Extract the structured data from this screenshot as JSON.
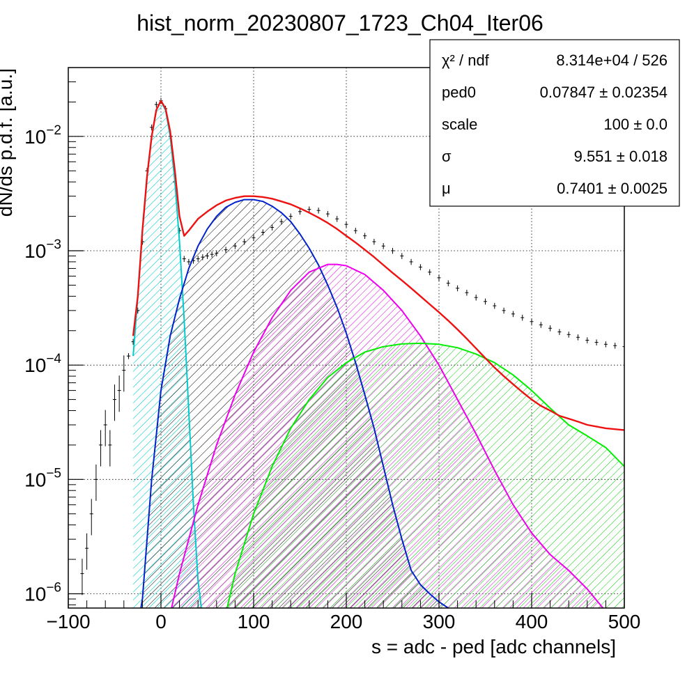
{
  "chart_data": {
    "type": "line",
    "title": "hist_norm_20230807_1723_Ch04_Iter06",
    "xlabel": "s = adc - ped [adc channels]",
    "ylabel": "dN/ds p.d.f. [a.u.]",
    "xlim": [
      -100,
      500
    ],
    "ylim": [
      7.5e-07,
      0.04
    ],
    "yscale": "log",
    "grid": true,
    "x_ticks": [
      {
        "value": -100,
        "label": "−100"
      },
      {
        "value": 0,
        "label": "0"
      },
      {
        "value": 100,
        "label": "100"
      },
      {
        "value": 200,
        "label": "200"
      },
      {
        "value": 300,
        "label": "300"
      },
      {
        "value": 400,
        "label": "400"
      },
      {
        "value": 500,
        "label": "500"
      }
    ],
    "y_ticks": [
      {
        "value": 1e-06,
        "mant": "10",
        "exp": "−6"
      },
      {
        "value": 1e-05,
        "mant": "10",
        "exp": "−5"
      },
      {
        "value": 0.0001,
        "mant": "10",
        "exp": "−4"
      },
      {
        "value": 0.001,
        "mant": "10",
        "exp": "−3"
      },
      {
        "value": 0.01,
        "mant": "10",
        "exp": "−2"
      }
    ],
    "stats_box": {
      "placement": "top-right",
      "rows": [
        {
          "label": "χ² / ndf",
          "value": "8.314e+04 / 526"
        },
        {
          "label": "ped0",
          "value": "0.07847 ± 0.02354"
        },
        {
          "label": "scale",
          "value": "100 ± 0.0"
        },
        {
          "label": "σ",
          "value": "9.551 ± 0.018"
        },
        {
          "label": "μ",
          "value": "0.7401 ± 0.0025"
        }
      ]
    },
    "series": [
      {
        "kind": "histogram",
        "color": "#000000",
        "x": [
          -85,
          -80,
          -75,
          -70,
          -65,
          -60,
          -55,
          -50,
          -45,
          -40,
          -35,
          -30,
          -25,
          -20,
          -15,
          -10,
          -5,
          0,
          5,
          10,
          15,
          20,
          25,
          30,
          35,
          40,
          45,
          50,
          55,
          60,
          70,
          80,
          90,
          100,
          110,
          120,
          130,
          140,
          150,
          160,
          170,
          180,
          190,
          200,
          210,
          220,
          230,
          240,
          250,
          260,
          270,
          280,
          290,
          300,
          310,
          320,
          330,
          340,
          350,
          360,
          370,
          380,
          390,
          400,
          410,
          420,
          430,
          440,
          450,
          460,
          470,
          480,
          490,
          500
        ],
        "y": [
          1.5e-06,
          2.5e-06,
          5e-06,
          1e-05,
          2e-05,
          3e-05,
          2e-05,
          5e-05,
          6e-05,
          9e-05,
          0.00012,
          0.00016,
          0.0003,
          0.0012,
          0.005,
          0.012,
          0.019,
          0.0205,
          0.0175,
          0.01,
          0.004,
          0.0015,
          0.00085,
          0.0008,
          0.00082,
          0.00085,
          0.00088,
          0.0009,
          0.00093,
          0.00095,
          0.00102,
          0.0011,
          0.0012,
          0.0013,
          0.00145,
          0.0016,
          0.0018,
          0.002,
          0.0022,
          0.0023,
          0.00225,
          0.0021,
          0.0019,
          0.0017,
          0.0015,
          0.00135,
          0.0012,
          0.0011,
          0.001,
          0.0009,
          0.0008,
          0.00072,
          0.00065,
          0.00058,
          0.00052,
          0.00047,
          0.00043,
          0.00039,
          0.00036,
          0.00033,
          0.0003,
          0.00028,
          0.00026,
          0.00024,
          0.000225,
          0.00021,
          0.000195,
          0.000185,
          0.000175,
          0.000165,
          0.000158,
          0.000152,
          0.000148,
          0.000145
        ]
      },
      {
        "kind": "component",
        "color": "#00cccc",
        "fill": "hatch-cyan",
        "x": [
          -30,
          -25,
          -20,
          -15,
          -10,
          -5,
          0,
          5,
          10,
          15,
          20,
          25,
          30,
          35,
          40,
          45
        ],
        "y": [
          0.00012,
          0.0004,
          0.0015,
          0.0045,
          0.01,
          0.017,
          0.0205,
          0.017,
          0.01,
          0.004,
          0.0012,
          0.00025,
          4e-05,
          6e-06,
          1.3e-06,
          6e-07
        ]
      },
      {
        "kind": "component",
        "color": "#0022cc",
        "fill": "hatch-black",
        "x": [
          -30,
          -20,
          -10,
          0,
          10,
          20,
          30,
          40,
          50,
          60,
          70,
          80,
          90,
          100,
          110,
          120,
          130,
          140,
          150,
          160,
          170,
          180,
          190,
          200,
          210,
          220,
          230,
          240,
          250,
          260,
          270,
          280,
          290,
          300,
          310,
          320
        ],
        "y": [
          3e-07,
          9e-07,
          1e-05,
          6e-05,
          0.00018,
          0.00038,
          0.0007,
          0.0011,
          0.00155,
          0.002,
          0.0024,
          0.00265,
          0.0028,
          0.0028,
          0.0027,
          0.00245,
          0.00215,
          0.0018,
          0.0014,
          0.00105,
          0.00075,
          0.0005,
          0.00032,
          0.00019,
          0.000105,
          5.5e-05,
          2.8e-05,
          1.3e-05,
          6e-06,
          3e-06,
          1.6e-06,
          1.2e-06,
          1e-06,
          8.5e-07,
          7.5e-07,
          6.5e-07
        ]
      },
      {
        "kind": "component",
        "color": "#ee00ee",
        "fill": "hatch-magenta",
        "x": [
          0,
          20,
          40,
          60,
          80,
          100,
          120,
          140,
          160,
          180,
          190,
          200,
          220,
          240,
          260,
          280,
          300,
          320,
          340,
          360,
          380,
          400,
          420,
          440,
          460,
          480
        ],
        "y": [
          3e-07,
          1.5e-06,
          6e-06,
          2e-05,
          5.5e-05,
          0.00013,
          0.00026,
          0.00045,
          0.00065,
          0.00076,
          0.00076,
          0.00074,
          0.00062,
          0.00045,
          0.0003,
          0.00018,
          0.0001,
          5e-05,
          2.5e-05,
          1.2e-05,
          6e-06,
          3.4e-06,
          2.2e-06,
          1.6e-06,
          1.1e-06,
          7e-07
        ]
      },
      {
        "kind": "component",
        "color": "#00ee00",
        "fill": "hatch-green",
        "x": [
          60,
          80,
          100,
          120,
          140,
          160,
          180,
          200,
          220,
          240,
          260,
          280,
          300,
          320,
          340,
          360,
          380,
          400,
          420,
          440,
          460,
          480,
          500
        ],
        "y": [
          3e-07,
          1.5e-06,
          5e-06,
          1.3e-05,
          2.8e-05,
          5e-05,
          7.8e-05,
          0.000105,
          0.00013,
          0.000145,
          0.000153,
          0.000155,
          0.000152,
          0.000142,
          0.000125,
          0.000105,
          8.2e-05,
          6e-05,
          4.2e-05,
          3e-05,
          2.4e-05,
          1.9e-05,
          1.3e-05
        ]
      },
      {
        "kind": "total-fit",
        "color": "#ee1111",
        "x": [
          -30,
          -25,
          -20,
          -15,
          -10,
          -5,
          0,
          5,
          10,
          15,
          20,
          25,
          30,
          40,
          50,
          60,
          70,
          80,
          90,
          100,
          110,
          120,
          130,
          140,
          150,
          160,
          170,
          180,
          190,
          200,
          210,
          220,
          230,
          240,
          250,
          260,
          270,
          280,
          290,
          300,
          310,
          320,
          330,
          340,
          350,
          360,
          370,
          380,
          390,
          400,
          410,
          420,
          430,
          440,
          450,
          460,
          470,
          480,
          490,
          500
        ],
        "y": [
          0.00018,
          0.0004,
          0.0015,
          0.0045,
          0.01,
          0.017,
          0.0205,
          0.0175,
          0.011,
          0.005,
          0.002,
          0.00135,
          0.0015,
          0.0019,
          0.0022,
          0.0025,
          0.00275,
          0.0029,
          0.003,
          0.003,
          0.00295,
          0.00285,
          0.0027,
          0.00255,
          0.00235,
          0.00215,
          0.00195,
          0.00175,
          0.00155,
          0.00135,
          0.00118,
          0.00102,
          0.00088,
          0.00075,
          0.00064,
          0.00055,
          0.00047,
          0.0004,
          0.00034,
          0.00029,
          0.000245,
          0.000205,
          0.00017,
          0.00014,
          0.000115,
          9.5e-05,
          8e-05,
          6.8e-05,
          5.8e-05,
          5e-05,
          4.4e-05,
          4e-05,
          3.6e-05,
          3.4e-05,
          3.2e-05,
          3e-05,
          2.9e-05,
          2.8e-05,
          2.75e-05,
          2.7e-05
        ]
      }
    ]
  }
}
